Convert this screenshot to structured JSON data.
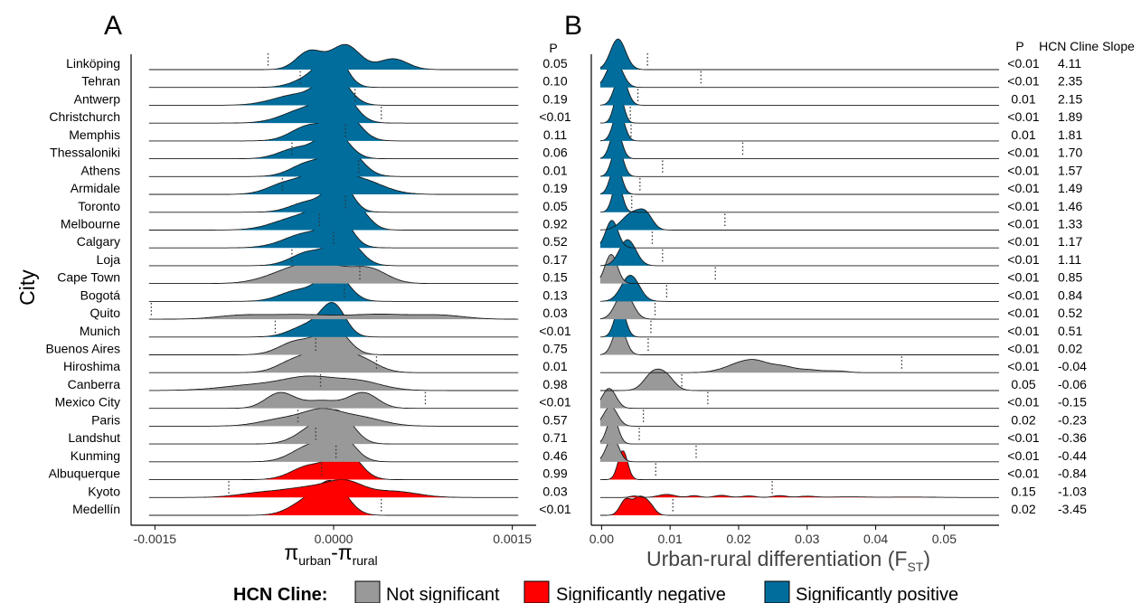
{
  "chart_data": [
    {
      "panel": "A",
      "type": "ridgeline",
      "ylabel": "City",
      "xlabel": {
        "symbol": "π",
        "sub1": "urban",
        "sep": "-π",
        "sub2": "rural"
      },
      "xlim": [
        -0.0017,
        0.0017
      ],
      "xticks": [
        {
          "value": -0.0015,
          "label": "-0.0015"
        },
        {
          "value": 0,
          "label": "0.0000"
        },
        {
          "value": 0.0015,
          "label": "0.0015"
        }
      ],
      "p_header": "P",
      "cities": [
        "Linköping",
        "Tehran",
        "Antwerp",
        "Christchurch",
        "Memphis",
        "Thessaloniki",
        "Athens",
        "Armidale",
        "Toronto",
        "Melbourne",
        "Calgary",
        "Loja",
        "Cape Town",
        "Bogotá",
        "Quito",
        "Munich",
        "Buenos Aires",
        "Hiroshima",
        "Canberra",
        "Mexico City",
        "Paris",
        "Landshut",
        "Kunming",
        "Albuquerque",
        "Kyoto",
        "Medellín"
      ],
      "categories": [
        "positive",
        "positive",
        "positive",
        "positive",
        "positive",
        "positive",
        "positive",
        "positive",
        "positive",
        "positive",
        "positive",
        "positive",
        "ns",
        "positive",
        "ns",
        "positive",
        "ns",
        "ns",
        "ns",
        "ns",
        "ns",
        "ns",
        "ns",
        "negative",
        "negative",
        "negative"
      ],
      "p_values": [
        "0.05",
        "0.10",
        "0.19",
        "<0.01",
        "0.11",
        "0.06",
        "0.01",
        "0.19",
        "0.05",
        "0.92",
        "0.52",
        "0.17",
        "0.15",
        "0.13",
        "0.03",
        "<0.01",
        "0.75",
        "0.01",
        "0.98",
        "<0.01",
        "0.57",
        "0.71",
        "0.46",
        "0.99",
        "0.03",
        "<0.01"
      ],
      "observed_values": [
        -0.00055,
        -0.00028,
        0.00018,
        0.0004,
        0.0001,
        -0.00035,
        0.00021,
        -0.00043,
        0.0001,
        -0.00012,
        0.0,
        -0.00035,
        0.00022,
        9e-05,
        -0.00153,
        -0.00049,
        -0.00015,
        0.00036,
        -0.00011,
        0.00077,
        -0.0003,
        -0.00015,
        2e-05,
        -0.0001,
        -0.00088,
        0.0004
      ],
      "distributions": [
        {
          "peaks": [
            [
              -0.0002,
              0.00011,
              0.6
            ],
            [
              0.0001,
              0.00012,
              0.8
            ],
            [
              0.0005,
              0.00012,
              0.35
            ]
          ]
        },
        {
          "peaks": [
            [
              -0.00015,
              0.00015,
              0.4
            ],
            [
              0.0,
              0.0001,
              1.0
            ]
          ]
        },
        {
          "peaks": [
            [
              -0.0003,
              0.0002,
              0.35
            ],
            [
              0.0,
              0.00012,
              0.95
            ]
          ]
        },
        {
          "peaks": [
            [
              -0.0002,
              0.0002,
              0.5
            ],
            [
              5e-05,
              0.00012,
              0.9
            ]
          ]
        },
        {
          "peaks": [
            [
              -0.0002,
              0.00015,
              0.5
            ],
            [
              0.0001,
              0.00012,
              0.85
            ]
          ]
        },
        {
          "peaks": [
            [
              -0.0003,
              0.00015,
              0.35
            ],
            [
              0.0,
              0.00012,
              0.9
            ]
          ]
        },
        {
          "peaks": [
            [
              -0.0002,
              0.00015,
              0.45
            ],
            [
              0.0001,
              0.00013,
              0.9
            ]
          ]
        },
        {
          "peaks": [
            [
              -0.0004,
              0.00015,
              0.35
            ],
            [
              -0.0001,
              0.00015,
              0.6
            ],
            [
              0.0002,
              0.0002,
              0.5
            ]
          ]
        },
        {
          "peaks": [
            [
              -0.0002,
              0.00015,
              0.35
            ],
            [
              5e-05,
              0.0001,
              1.0
            ]
          ]
        },
        {
          "peaks": [
            [
              -0.0003,
              0.0002,
              0.4
            ],
            [
              0.0,
              0.00015,
              0.75
            ],
            [
              0.0002,
              0.0001,
              0.5
            ]
          ]
        },
        {
          "peaks": [
            [
              -0.0002,
              0.0002,
              0.5
            ],
            [
              5e-05,
              0.0001,
              0.85
            ]
          ]
        },
        {
          "peaks": [
            [
              -0.0002,
              0.00015,
              0.45
            ],
            [
              0.0001,
              0.00012,
              0.85
            ]
          ]
        },
        {
          "peaks": [
            [
              -0.0004,
              0.0002,
              0.3
            ],
            [
              -0.0001,
              0.0002,
              0.6
            ],
            [
              0.0003,
              0.00015,
              0.45
            ]
          ]
        },
        {
          "peaks": [
            [
              -0.0003,
              0.00015,
              0.35
            ],
            [
              0.0,
              0.00012,
              0.95
            ]
          ]
        },
        {
          "peaks": [
            [
              -0.0008,
              0.0002,
              0.1
            ],
            [
              -0.0003,
              0.0003,
              0.15
            ],
            [
              0.0004,
              0.00025,
              0.15
            ],
            [
              0.0009,
              0.0002,
              0.12
            ]
          ]
        },
        {
          "peaks": [
            [
              -0.0002,
              0.00015,
              0.4
            ],
            [
              0.0,
              0.0001,
              0.95
            ]
          ]
        },
        {
          "peaks": [
            [
              -0.0003,
              0.00015,
              0.45
            ],
            [
              0.0,
              0.00012,
              0.85
            ]
          ]
        },
        {
          "peaks": [
            [
              -0.0003,
              0.00015,
              0.45
            ],
            [
              -5e-05,
              0.00012,
              0.75
            ],
            [
              0.0002,
              0.00015,
              0.5
            ]
          ]
        },
        {
          "peaks": [
            [
              -0.0006,
              0.0003,
              0.2
            ],
            [
              -0.0002,
              0.0002,
              0.35
            ],
            [
              0.0002,
              0.0002,
              0.3
            ]
          ]
        },
        {
          "peaks": [
            [
              -0.00045,
              0.00012,
              0.5
            ],
            [
              -0.0001,
              0.00015,
              0.25
            ],
            [
              0.00025,
              0.00012,
              0.5
            ]
          ]
        },
        {
          "peaks": [
            [
              -0.0004,
              0.0002,
              0.25
            ],
            [
              -0.0001,
              0.00015,
              0.4
            ],
            [
              0.0002,
              0.0002,
              0.3
            ]
          ]
        },
        {
          "peaks": [
            [
              -0.00015,
              0.00015,
              0.55
            ],
            [
              5e-05,
              0.00012,
              0.85
            ]
          ]
        },
        {
          "peaks": [
            [
              -0.0002,
              0.00015,
              0.5
            ],
            [
              5e-05,
              0.00012,
              0.85
            ]
          ]
        },
        {
          "peaks": [
            [
              -0.0002,
              0.00015,
              0.45
            ],
            [
              0.0001,
              0.00012,
              0.9
            ]
          ]
        },
        {
          "peaks": [
            [
              -0.0006,
              0.0002,
              0.15
            ],
            [
              -0.0002,
              0.0002,
              0.3
            ],
            [
              0.0001,
              0.00015,
              0.45
            ],
            [
              0.0005,
              0.0002,
              0.2
            ]
          ]
        },
        {
          "peaks": [
            [
              -0.0002,
              0.00015,
              0.5
            ],
            [
              0.0,
              0.00012,
              0.9
            ]
          ]
        }
      ]
    },
    {
      "panel": "B",
      "type": "ridgeline",
      "xlabel": "Urban-rural differentiation (F",
      "xlabel_sub": "ST",
      "xlabel_close": ")",
      "xlim": [
        -0.0015,
        0.058
      ],
      "xticks": [
        {
          "value": 0.0,
          "label": "0.00"
        },
        {
          "value": 0.01,
          "label": "0.01"
        },
        {
          "value": 0.02,
          "label": "0.02"
        },
        {
          "value": 0.03,
          "label": "0.03"
        },
        {
          "value": 0.04,
          "label": "0.04"
        },
        {
          "value": 0.05,
          "label": "0.05"
        }
      ],
      "p_header": "P",
      "slope_header": "HCN Cline Slope",
      "p_values": [
        "<0.01",
        "<0.01",
        "0.01",
        "<0.01",
        "0.01",
        "<0.01",
        "<0.01",
        "<0.01",
        "<0.01",
        "<0.01",
        "<0.01",
        "<0.01",
        "<0.01",
        "<0.01",
        "<0.01",
        "<0.01",
        "<0.01",
        "<0.01",
        "0.05",
        "<0.01",
        "0.02",
        "<0.01",
        "<0.01",
        "<0.01",
        "0.15",
        "0.02"
      ],
      "slopes": [
        "4.11",
        "2.35",
        "2.15",
        "1.89",
        "1.81",
        "1.70",
        "1.57",
        "1.49",
        "1.46",
        "1.33",
        "1.17",
        "1.11",
        "0.85",
        "0.84",
        "0.52",
        "0.51",
        "0.02",
        "-0.04",
        "-0.06",
        "-0.15",
        "-0.23",
        "-0.36",
        "-0.44",
        "-0.84",
        "-1.03",
        "-3.45"
      ],
      "observed_values": [
        0.0067,
        0.0145,
        0.0053,
        0.0042,
        0.0043,
        0.0206,
        0.0089,
        0.0056,
        0.0044,
        0.018,
        0.0074,
        0.0089,
        0.0166,
        0.0095,
        0.0078,
        0.0072,
        0.0068,
        0.0438,
        0.0117,
        0.0155,
        0.0061,
        0.0055,
        0.0138,
        0.0079,
        0.0249,
        0.0104
      ],
      "distributions": [
        {
          "peaks": [
            [
              0.0024,
              0.0011,
              1.0
            ]
          ]
        },
        {
          "peaks": [
            [
              0.0019,
              0.0011,
              0.9
            ]
          ]
        },
        {
          "peaks": [
            [
              0.0028,
              0.0009,
              1.0
            ]
          ]
        },
        {
          "peaks": [
            [
              0.0025,
              0.0007,
              1.0
            ]
          ]
        },
        {
          "peaks": [
            [
              0.0025,
              0.0008,
              1.0
            ]
          ]
        },
        {
          "peaks": [
            [
              0.0021,
              0.0008,
              1.0
            ]
          ]
        },
        {
          "peaks": [
            [
              0.0023,
              0.0008,
              1.0
            ]
          ]
        },
        {
          "peaks": [
            [
              0.0021,
              0.0008,
              1.0
            ]
          ]
        },
        {
          "peaks": [
            [
              0.0023,
              0.0007,
              1.0
            ]
          ]
        },
        {
          "peaks": [
            [
              0.0045,
              0.0015,
              0.55
            ],
            [
              0.0065,
              0.001,
              0.4
            ]
          ]
        },
        {
          "peaks": [
            [
              0.0015,
              0.0009,
              0.9
            ]
          ]
        },
        {
          "peaks": [
            [
              0.0038,
              0.0012,
              0.85
            ]
          ]
        },
        {
          "peaks": [
            [
              0.0014,
              0.0009,
              0.95
            ]
          ]
        },
        {
          "peaks": [
            [
              0.0042,
              0.0013,
              0.85
            ]
          ]
        },
        {
          "peaks": [
            [
              0.0033,
              0.0012,
              0.9
            ]
          ]
        },
        {
          "peaks": [
            [
              0.0027,
              0.0008,
              1.0
            ]
          ]
        },
        {
          "peaks": [
            [
              0.0026,
              0.0009,
              0.95
            ]
          ]
        },
        {
          "peaks": [
            [
              0.0205,
              0.0025,
              0.28
            ],
            [
              0.023,
              0.002,
              0.22
            ],
            [
              0.0265,
              0.0015,
              0.15
            ],
            [
              0.03,
              0.002,
              0.1
            ],
            [
              0.0345,
              0.0015,
              0.05
            ]
          ]
        },
        {
          "peaks": [
            [
              0.0075,
              0.0013,
              0.55
            ],
            [
              0.0095,
              0.0012,
              0.4
            ]
          ]
        },
        {
          "peaks": [
            [
              0.0011,
              0.001,
              0.65
            ]
          ]
        },
        {
          "peaks": [
            [
              0.0013,
              0.001,
              0.65
            ]
          ]
        },
        {
          "peaks": [
            [
              0.0016,
              0.0008,
              0.9
            ]
          ]
        },
        {
          "peaks": [
            [
              0.0016,
              0.0009,
              0.8
            ]
          ]
        },
        {
          "peaks": [
            [
              0.0031,
              0.0007,
              0.95
            ]
          ]
        },
        {
          "peaks": [
            [
              0.0048,
              0.0006,
              0.05
            ],
            [
              0.0095,
              0.0012,
              0.1
            ],
            [
              0.0135,
              0.0008,
              0.06
            ],
            [
              0.0175,
              0.001,
              0.07
            ],
            [
              0.0215,
              0.001,
              0.05
            ],
            [
              0.026,
              0.001,
              0.06
            ],
            [
              0.03,
              0.0012,
              0.04
            ],
            [
              0.036,
              0.003,
              0.02
            ],
            [
              0.045,
              0.003,
              0.015
            ]
          ]
        },
        {
          "peaks": [
            [
              0.0035,
              0.0008,
              0.5
            ],
            [
              0.0055,
              0.0009,
              0.55
            ],
            [
              0.007,
              0.0008,
              0.3
            ]
          ]
        }
      ]
    }
  ],
  "figure": {
    "panel_a_label": "A",
    "panel_b_label": "B",
    "colors": {
      "positive": "#006d9c",
      "negative": "#ff0000",
      "ns": "#999999",
      "guide_line": "#333333",
      "observed_line": "#333333"
    },
    "legend": {
      "title": "HCN Cline:",
      "items": [
        {
          "key": "ns",
          "label": "Not significant"
        },
        {
          "key": "negative",
          "label": "Significantly negative"
        },
        {
          "key": "positive",
          "label": "Significantly positive"
        }
      ]
    }
  }
}
